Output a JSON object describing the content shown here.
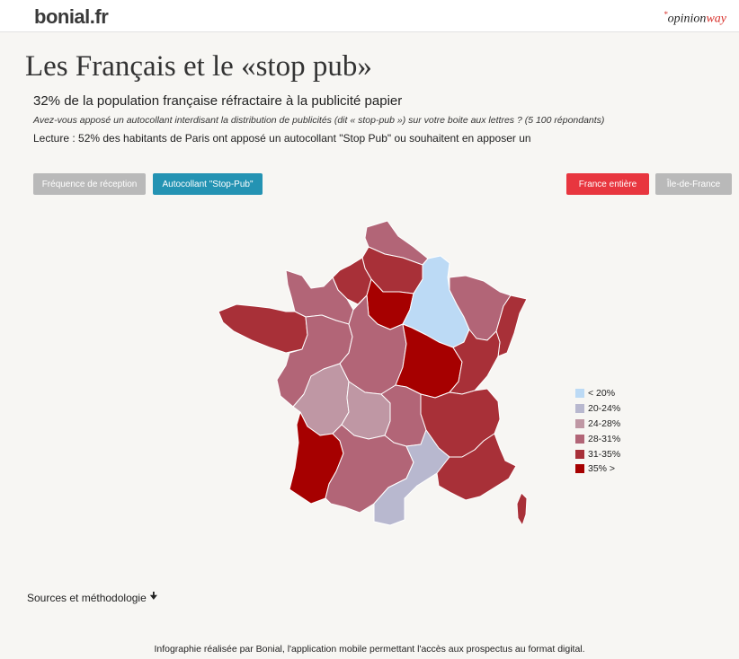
{
  "header": {
    "logo_bonial": "bonial.fr",
    "logo_opinion_prefix": "opinion",
    "logo_opinion_suffix": "way",
    "logo_opinion_mark": "*"
  },
  "title": "Les Français et le «stop pub»",
  "subtitle": "32% de la population française réfractaire à la publicité papier",
  "question": "Avez-vous apposé un autocollant interdisant la distribution de publicités (dit « stop-pub ») sur votre boite aux lettres ? (5 100 répondants)",
  "lecture": "Lecture : 52% des habitants de Paris ont apposé un autocollant \"Stop Pub\" ou souhaitent en apposer un",
  "buttons": {
    "frequence": "Fréquence de réception",
    "stop_pub": "Autocollant \"Stop-Pub\"",
    "france": "France entière",
    "idf": "Île-de-France"
  },
  "colors": {
    "lt20": "#bcdaf5",
    "c20_24": "#b8b8cf",
    "c24_28": "#bf97a4",
    "c28_31": "#b26577",
    "c31_35": "#a83038",
    "gt35": "#a60000",
    "accent_blue": "#2493b3",
    "accent_red": "#e8363f"
  },
  "legend": [
    {
      "label": "< 20%",
      "color": "#bcdaf5"
    },
    {
      "label": "20-24%",
      "color": "#b8b8cf"
    },
    {
      "label": "24-28%",
      "color": "#bf97a4"
    },
    {
      "label": "28-31%",
      "color": "#b26577"
    },
    {
      "label": "31-35%",
      "color": "#a83038"
    },
    {
      "label": "35% >",
      "color": "#a60000"
    }
  ],
  "regions": [
    {
      "name": "nord-pas-de-calais",
      "class": "28-31%"
    },
    {
      "name": "picardie",
      "class": "31-35%"
    },
    {
      "name": "haute-normandie",
      "class": "31-35%"
    },
    {
      "name": "basse-normandie",
      "class": "28-31%"
    },
    {
      "name": "ile-de-france",
      "class": "35% >"
    },
    {
      "name": "champagne-ardenne",
      "class": "< 20%"
    },
    {
      "name": "lorraine",
      "class": "28-31%"
    },
    {
      "name": "alsace",
      "class": "31-35%"
    },
    {
      "name": "bretagne",
      "class": "31-35%"
    },
    {
      "name": "pays-de-la-loire",
      "class": "28-31%"
    },
    {
      "name": "centre",
      "class": "28-31%"
    },
    {
      "name": "bourgogne",
      "class": "35% >"
    },
    {
      "name": "franche-comte",
      "class": "31-35%"
    },
    {
      "name": "poitou-charentes",
      "class": "24-28%"
    },
    {
      "name": "limousin",
      "class": "24-28%"
    },
    {
      "name": "auvergne",
      "class": "28-31%"
    },
    {
      "name": "rhone-alpes",
      "class": "31-35%"
    },
    {
      "name": "aquitaine",
      "class": "35% >"
    },
    {
      "name": "midi-pyrenees",
      "class": "28-31%"
    },
    {
      "name": "languedoc-roussillon",
      "class": "20-24%"
    },
    {
      "name": "provence-alpes-cote-d-azur",
      "class": "31-35%"
    },
    {
      "name": "corse",
      "class": "31-35%"
    }
  ],
  "sources_label": "Sources et méthodologie",
  "footer": "Infographie réalisée par Bonial, l'application mobile permettant l'accès aux prospectus au format digital."
}
